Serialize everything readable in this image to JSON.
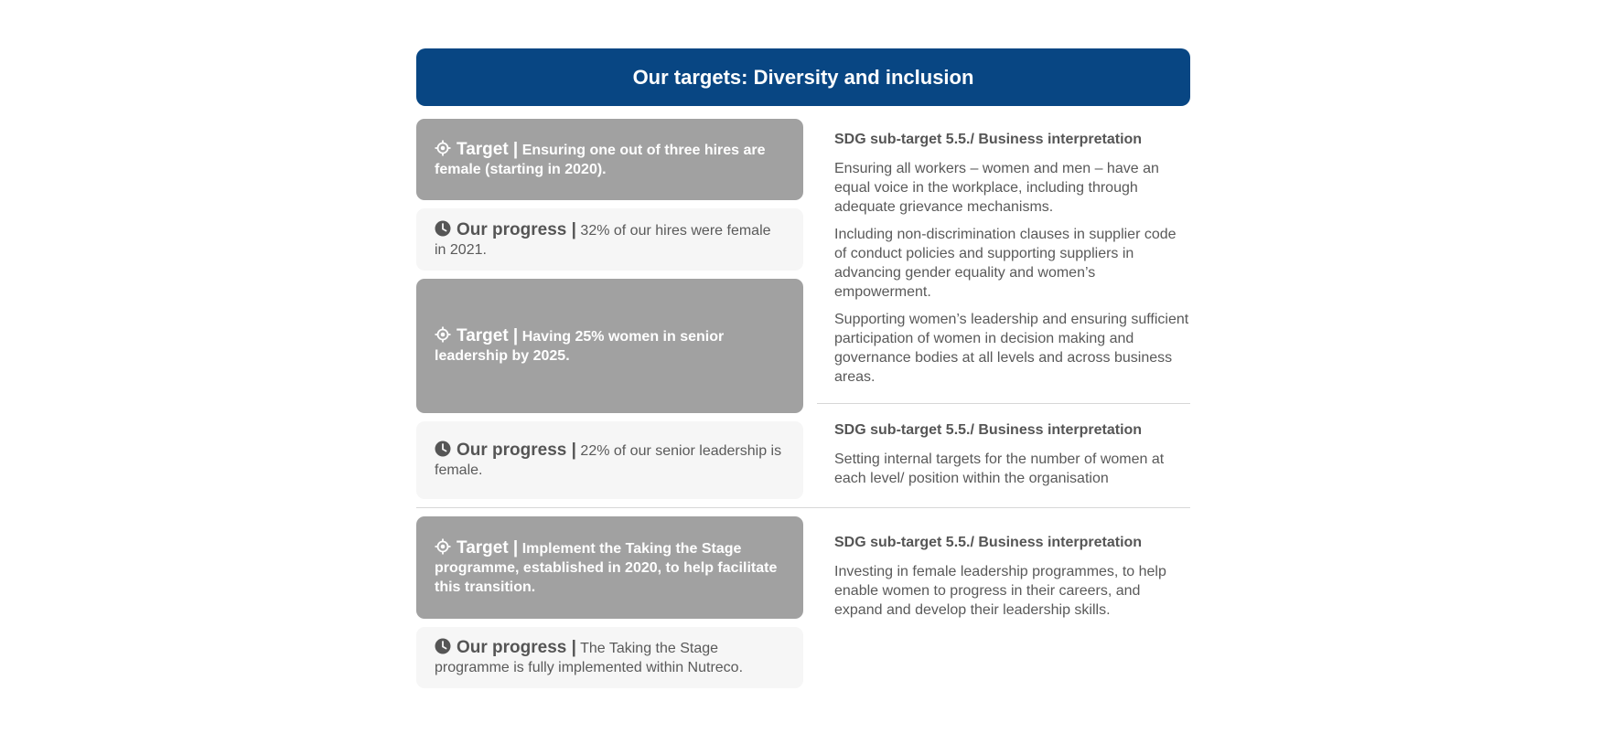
{
  "header": {
    "title": "Our targets: Diversity and inclusion"
  },
  "rows": [
    {
      "target_label": "Target |",
      "target_text": " Ensuring one out of three hires are female (starting in 2020).",
      "progress_label": "Our progress |",
      "progress_text": " 32% of our hires were female in 2021."
    },
    {
      "target_label": "Target |",
      "target_text": " Having 25% women in senior leadership by 2025.",
      "progress_label": "Our progress |",
      "progress_text": " 22% of our senior leadership is female."
    },
    {
      "target_label": "Target |",
      "target_text": " Implement the Taking the Stage programme, established in 2020, to help facilitate this transition.",
      "progress_label": "Our progress |",
      "progress_text": " The Taking the Stage programme is fully implemented within Nutreco."
    }
  ],
  "sdg": [
    {
      "title": "SDG sub-target 5.5./ Business interpretation",
      "paragraphs": [
        "Ensuring all workers – women and men – have an equal voice in the workplace, including through adequate grievance mechanisms.",
        "Including non-discrimination clauses in supplier code of conduct policies and supporting suppliers in advancing gender equality and women’s empowerment.",
        "Supporting women’s leadership and ensuring sufficient participation of women in decision making and governance bodies at all levels and across business areas."
      ]
    },
    {
      "title": "SDG sub-target 5.5./ Business interpretation",
      "paragraphs": [
        "Setting internal targets for the number of women at each level/ position within the organisation"
      ]
    },
    {
      "title": "SDG sub-target 5.5./ Business interpretation",
      "paragraphs": [
        "Investing in female leadership programmes, to help enable women to progress in their careers, and expand and develop their leadership skills."
      ]
    }
  ],
  "icons": {
    "target": "target-icon",
    "progress": "clock-icon"
  },
  "colors": {
    "header_bg": "#084683",
    "target_bg": "#a1a1a1",
    "progress_bg": "#f6f6f6"
  }
}
